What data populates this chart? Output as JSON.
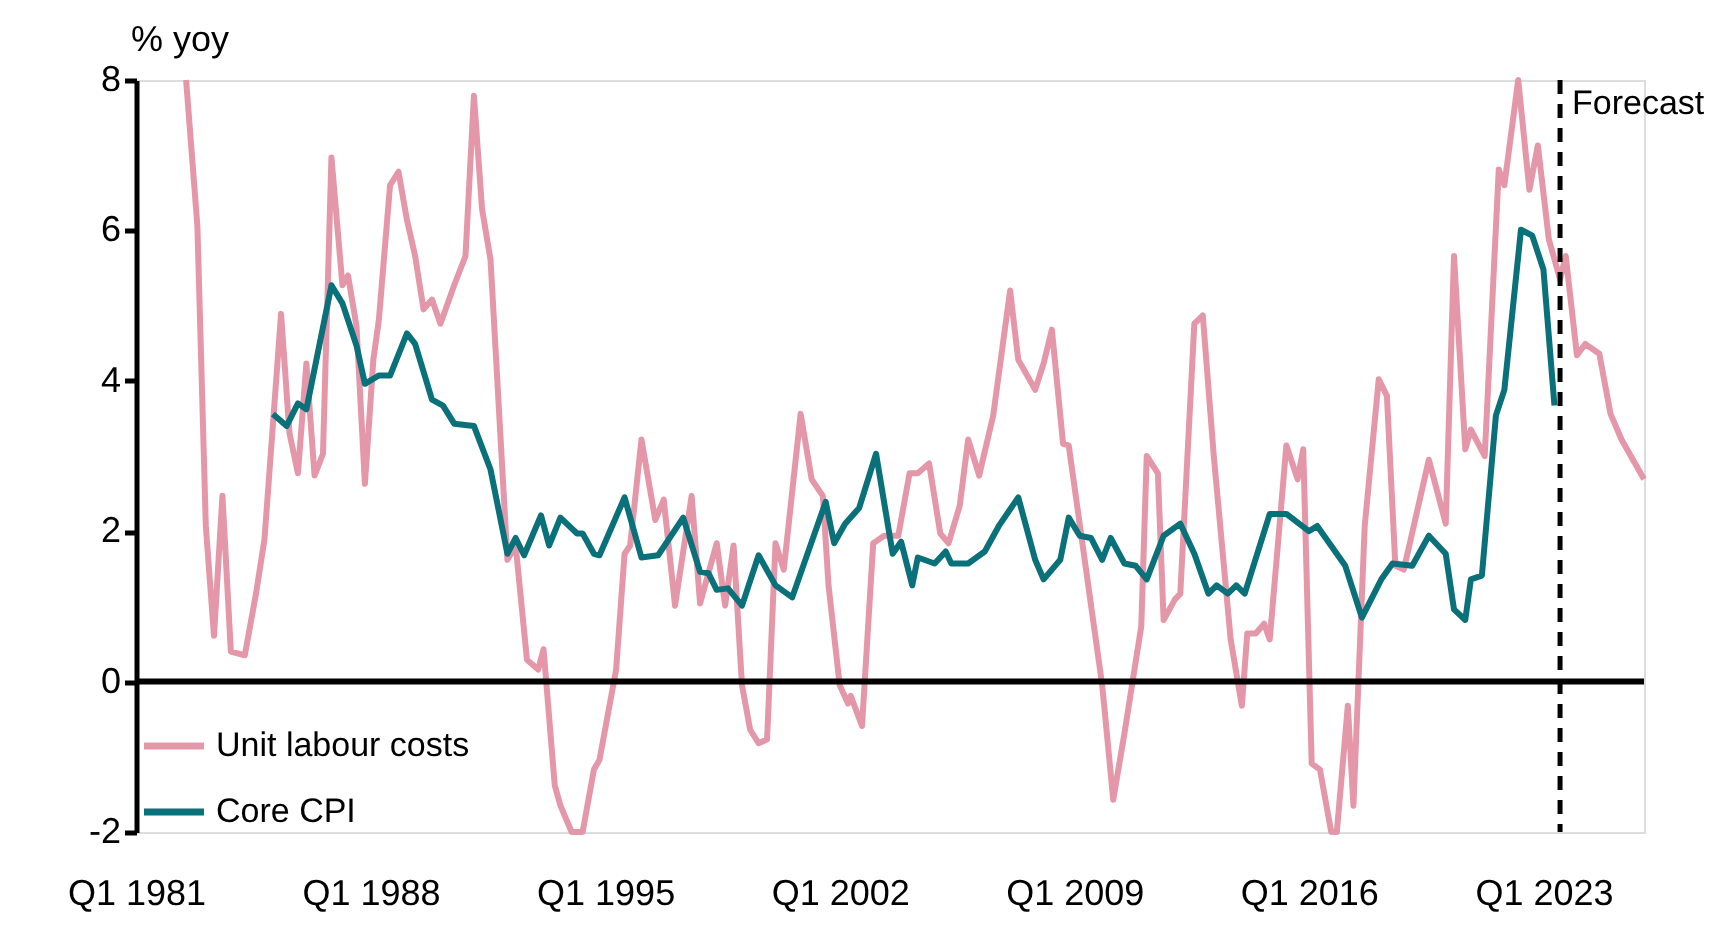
{
  "chart_data": {
    "type": "line",
    "ylabel": "% yoy",
    "xlim": [
      "1981-01",
      "2026-01"
    ],
    "ylim": [
      -2,
      8
    ],
    "yticks": [
      -2,
      0,
      2,
      4,
      6,
      8
    ],
    "xticks": [
      {
        "value": "1981-01",
        "label": "Q1 1981"
      },
      {
        "value": "1988-01",
        "label": "Q1 1988"
      },
      {
        "value": "1995-01",
        "label": "Q1 1995"
      },
      {
        "value": "2002-01",
        "label": "Q1 2002"
      },
      {
        "value": "2009-01",
        "label": "Q1 2009"
      },
      {
        "value": "2016-01",
        "label": "Q1 2016"
      },
      {
        "value": "2023-01",
        "label": "Q1 2023"
      }
    ],
    "grid": false,
    "legend": "bottom left",
    "line_style": "solid",
    "ref_lines": [
      {
        "axis": "y",
        "value": 0,
        "color": "#000000",
        "line_style": "solid"
      },
      {
        "axis": "x",
        "value": "2023-07",
        "label": "Forecast",
        "color": "#000000",
        "line_style": "dashed"
      }
    ],
    "series": [
      {
        "name": "Unit labour costs",
        "color": "#e597aa",
        "x": [
          "1982-07",
          "1982-11",
          "1983-02",
          "1983-05",
          "1983-08",
          "1983-11",
          "1984-04",
          "1984-08",
          "1984-11",
          "1985-05",
          "1985-08",
          "1985-11",
          "1986-02",
          "1986-05",
          "1986-08",
          "1986-11",
          "1987-03",
          "1987-05",
          "1987-08",
          "1987-11",
          "1988-02",
          "1988-04",
          "1988-08",
          "1988-11",
          "1989-02",
          "1989-05",
          "1989-08",
          "1989-11",
          "1990-02",
          "1990-07",
          "1990-11",
          "1991-02",
          "1991-05",
          "1991-08",
          "1992-02",
          "1992-05",
          "1992-09",
          "1993-01",
          "1993-03",
          "1993-07",
          "1993-09",
          "1994-01",
          "1994-05",
          "1994-09",
          "1994-11",
          "1995-05",
          "1995-08",
          "1995-10",
          "1996-02",
          "1996-07",
          "1996-10",
          "1997-02",
          "1997-08",
          "1997-11",
          "1998-05",
          "1998-08",
          "1998-11",
          "1999-02",
          "1999-05",
          "1999-08",
          "1999-11",
          "2000-02",
          "2000-05",
          "2000-11",
          "2001-03",
          "2001-07",
          "2001-09",
          "2002-01",
          "2002-04",
          "2002-05",
          "2002-09",
          "2003-01",
          "2003-05",
          "2003-10",
          "2004-02",
          "2004-05",
          "2004-09",
          "2005-01",
          "2005-04",
          "2005-08",
          "2005-11",
          "2006-03",
          "2006-08",
          "2007-02",
          "2007-05",
          "2007-11",
          "2008-02",
          "2008-05",
          "2008-09",
          "2008-11",
          "2009-11",
          "2010-03",
          "2010-07",
          "2011-01",
          "2011-03",
          "2011-07",
          "2011-09",
          "2012-01",
          "2012-03",
          "2012-08",
          "2012-11",
          "2013-03",
          "2013-09",
          "2014-01",
          "2014-03",
          "2014-06",
          "2014-09",
          "2014-11",
          "2015-05",
          "2015-09",
          "2015-11",
          "2016-02",
          "2016-05",
          "2016-09",
          "2016-11",
          "2017-03",
          "2017-05",
          "2017-09",
          "2018-02",
          "2018-05",
          "2018-08",
          "2018-11",
          "2019-08",
          "2020-02",
          "2020-05",
          "2020-09",
          "2020-11",
          "2021-04",
          "2021-09",
          "2021-11",
          "2022-04",
          "2022-08",
          "2022-11",
          "2023-03",
          "2023-07",
          "2023-09",
          "2024-01",
          "2024-04",
          "2024-09",
          "2025-01",
          "2025-05",
          "2026-01"
        ],
        "values": [
          8.0,
          6.06,
          2.07,
          0.61,
          2.47,
          0.4,
          0.35,
          1.17,
          1.89,
          4.89,
          3.3,
          2.77,
          4.23,
          2.74,
          3.03,
          6.97,
          5.27,
          5.4,
          4.73,
          2.63,
          4.28,
          4.81,
          6.6,
          6.78,
          6.14,
          5.66,
          4.95,
          5.08,
          4.76,
          5.27,
          5.66,
          7.79,
          6.28,
          5.61,
          1.62,
          1.81,
          0.29,
          0.16,
          0.43,
          -1.38,
          -1.65,
          -2.0,
          -2.0,
          -1.17,
          -1.04,
          0.16,
          1.7,
          1.81,
          3.22,
          2.15,
          2.42,
          1.01,
          2.47,
          1.04,
          1.84,
          1.01,
          1.81,
          -0.05,
          -0.64,
          -0.82,
          -0.77,
          1.84,
          1.49,
          3.56,
          2.69,
          2.47,
          1.28,
          -0.05,
          -0.29,
          -0.19,
          -0.59,
          1.84,
          1.94,
          1.94,
          2.77,
          2.77,
          2.9,
          1.97,
          1.84,
          2.34,
          3.22,
          2.74,
          3.54,
          5.2,
          4.28,
          3.88,
          4.23,
          4.68,
          3.16,
          3.14,
          -0.05,
          -1.57,
          -0.69,
          0.74,
          3.0,
          2.77,
          0.82,
          1.09,
          1.17,
          4.76,
          4.87,
          3.0,
          0.56,
          -0.32,
          0.64,
          0.64,
          0.77,
          0.56,
          3.14,
          2.69,
          3.09,
          -1.09,
          -1.17,
          -2.0,
          -2.0,
          -0.32,
          -1.65,
          2.07,
          4.02,
          3.8,
          1.54,
          1.49,
          2.95,
          2.1,
          5.66,
          3.09,
          3.35,
          3.0,
          6.81,
          6.6,
          8.0,
          6.54,
          7.13,
          5.88,
          5.35,
          5.66,
          4.34,
          4.49,
          4.36,
          3.56,
          3.22,
          2.69
        ]
      },
      {
        "name": "Core CPI",
        "color": "#0a7079",
        "x": [
          "1985-02",
          "1985-07",
          "1985-11",
          "1986-02",
          "1986-11",
          "1987-03",
          "1987-08",
          "1987-11",
          "1988-04",
          "1988-08",
          "1989-02",
          "1989-05",
          "1989-11",
          "1990-03",
          "1990-07",
          "1991-02",
          "1991-08",
          "1992-02",
          "1992-05",
          "1992-08",
          "1993-02",
          "1993-05",
          "1993-09",
          "1994-03",
          "1994-05",
          "1994-09",
          "1994-11",
          "1995-08",
          "1996-02",
          "1996-08",
          "1997-05",
          "1997-11",
          "1998-02",
          "1998-05",
          "1998-09",
          "1999-02",
          "1999-08",
          "2000-02",
          "2000-08",
          "2001-08",
          "2001-11",
          "2002-03",
          "2002-08",
          "2003-02",
          "2003-08",
          "2003-11",
          "2004-03",
          "2004-05",
          "2004-11",
          "2005-03",
          "2005-05",
          "2005-11",
          "2006-05",
          "2006-10",
          "2007-05",
          "2007-11",
          "2008-02",
          "2008-08",
          "2008-11",
          "2009-03",
          "2009-07",
          "2009-11",
          "2010-02",
          "2010-07",
          "2010-11",
          "2011-03",
          "2011-09",
          "2012-03",
          "2012-08",
          "2013-01",
          "2013-04",
          "2013-08",
          "2013-11",
          "2014-02",
          "2014-11",
          "2015-05",
          "2016-01",
          "2016-04",
          "2017-02",
          "2017-08",
          "2018-03",
          "2018-07",
          "2019-02",
          "2019-08",
          "2020-02",
          "2020-05",
          "2020-09",
          "2020-11",
          "2021-03",
          "2021-08",
          "2021-11",
          "2022-05",
          "2022-09",
          "2023-01",
          "2023-05"
        ],
        "values": [
          3.56,
          3.4,
          3.7,
          3.62,
          5.27,
          5.03,
          4.47,
          3.96,
          4.07,
          4.07,
          4.63,
          4.49,
          3.75,
          3.67,
          3.43,
          3.4,
          2.82,
          1.7,
          1.91,
          1.68,
          2.21,
          1.81,
          2.18,
          1.97,
          1.97,
          1.7,
          1.68,
          2.45,
          1.65,
          1.68,
          2.18,
          1.46,
          1.44,
          1.22,
          1.24,
          1.01,
          1.68,
          1.28,
          1.12,
          2.39,
          1.84,
          2.1,
          2.31,
          3.03,
          1.7,
          1.86,
          1.28,
          1.65,
          1.57,
          1.73,
          1.57,
          1.57,
          1.73,
          2.07,
          2.45,
          1.62,
          1.36,
          1.62,
          2.18,
          1.94,
          1.91,
          1.62,
          1.91,
          1.57,
          1.54,
          1.36,
          1.94,
          2.1,
          1.7,
          1.17,
          1.28,
          1.17,
          1.28,
          1.17,
          2.23,
          2.23,
          2.0,
          2.07,
          1.54,
          0.85,
          1.36,
          1.57,
          1.54,
          1.94,
          1.7,
          0.96,
          0.82,
          1.36,
          1.41,
          3.54,
          3.88,
          6.01,
          5.93,
          5.48,
          3.67
        ]
      }
    ]
  }
}
